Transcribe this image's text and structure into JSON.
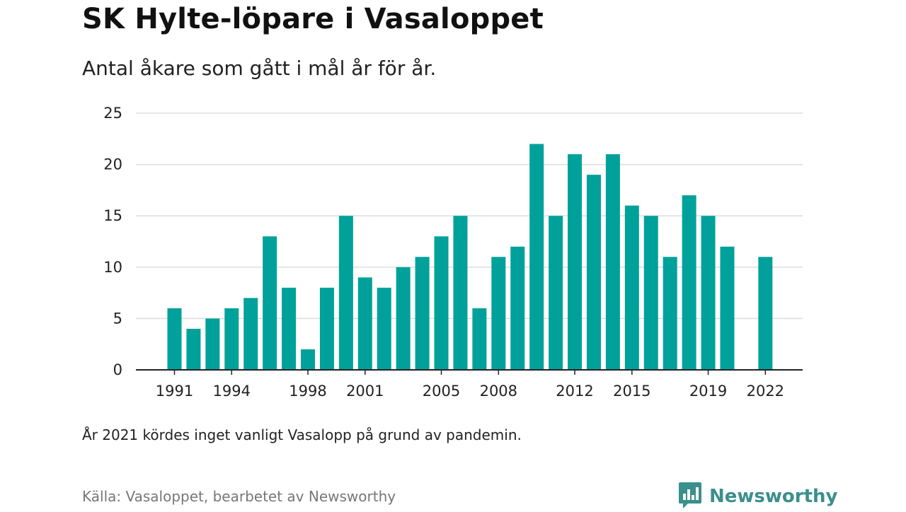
{
  "colors": {
    "bar": "#00a19a",
    "brand": "#3b8f8c",
    "grid": "#dddddd",
    "axis": "#222222"
  },
  "chart_data": {
    "type": "bar",
    "title": "SK Hylte-löpare i Vasaloppet",
    "subtitle": "Antal åkare som gått i mål år för år.",
    "categories": [
      1991,
      1992,
      1993,
      1994,
      1995,
      1996,
      1997,
      1998,
      1999,
      2000,
      2001,
      2002,
      2003,
      2004,
      2005,
      2006,
      2007,
      2008,
      2009,
      2010,
      2011,
      2012,
      2013,
      2014,
      2015,
      2016,
      2017,
      2018,
      2019,
      2020,
      2021,
      2022
    ],
    "values": [
      6,
      4,
      5,
      6,
      7,
      13,
      8,
      2,
      8,
      15,
      9,
      8,
      10,
      11,
      13,
      15,
      6,
      11,
      12,
      22,
      15,
      21,
      19,
      21,
      16,
      15,
      11,
      17,
      15,
      12,
      null,
      11
    ],
    "x_tick_labels": [
      "1991",
      "1994",
      "1998",
      "2001",
      "2005",
      "2008",
      "2012",
      "2015",
      "2019",
      "2022"
    ],
    "y_ticks": [
      0,
      5,
      10,
      15,
      20,
      25
    ],
    "ylim": [
      0,
      25
    ],
    "grid": true,
    "legend": "none",
    "note": "År 2021 kördes inget vanligt Vasalopp på grund av pandemin.",
    "source": "Källa: Vasaloppet, bearbetet av Newsworthy"
  },
  "brand": {
    "name": "Newsworthy",
    "icon": "newsworthy-logo-icon"
  }
}
